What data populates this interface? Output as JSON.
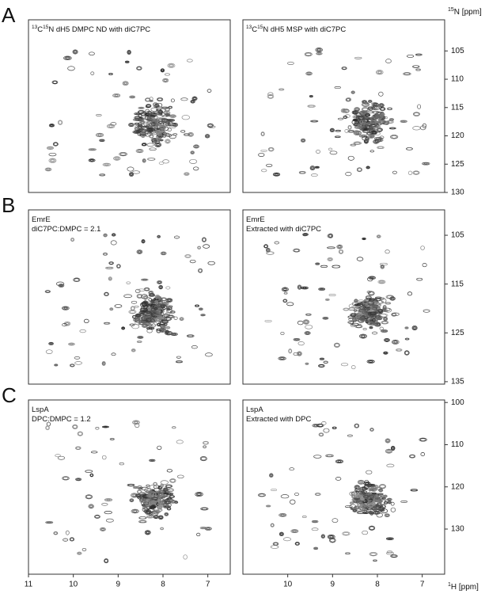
{
  "figure": {
    "y_axis_label": {
      "nucleus": "15",
      "text": "N [ppm]"
    },
    "x_axis_label": {
      "nucleus": "1",
      "text": "H [ppm]"
    },
    "xlim": [
      11,
      6.5
    ],
    "xticks": [
      11,
      10,
      9,
      8,
      7
    ],
    "rows": [
      {
        "letter": "A",
        "ylim": [
          99.5,
          130
        ],
        "yticks": [
          105,
          110,
          115,
          120,
          125,
          130
        ],
        "panels": [
          {
            "title": [
              [
                {
                  "text": "13",
                  "sup": true
                },
                {
                  "text": "C"
                },
                {
                  "text": "15",
                  "sup": true
                },
                {
                  "text": "N dH5 DMPC ND with diC7PC"
                }
              ]
            ]
          },
          {
            "title": [
              [
                {
                  "text": "13",
                  "sup": true
                },
                {
                  "text": "C"
                },
                {
                  "text": "15",
                  "sup": true
                },
                {
                  "text": "N dH5 MSP with diC7PC"
                }
              ]
            ]
          }
        ]
      },
      {
        "letter": "B",
        "ylim": [
          99.8,
          135.5
        ],
        "yticks": [
          105,
          115,
          125,
          135
        ],
        "panels": [
          {
            "title": [
              [
                {
                  "text": "EmrE"
                }
              ],
              [
                {
                  "text": "diC7PC:DMPC = 2.1"
                }
              ]
            ]
          },
          {
            "title": [
              [
                {
                  "text": "EmrE"
                }
              ],
              [
                {
                  "text": "Extracted with diC7PC"
                }
              ]
            ]
          }
        ]
      },
      {
        "letter": "C",
        "ylim": [
          99.4,
          140.7
        ],
        "yticks": [
          100,
          110,
          120,
          130
        ],
        "panels": [
          {
            "title": [
              [
                {
                  "text": "LspA"
                }
              ],
              [
                {
                  "text": "DPC:DMPC = 1.2"
                }
              ]
            ]
          },
          {
            "title": [
              [
                {
                  "text": "LspA"
                }
              ],
              [
                {
                  "text": "Extracted with DPC"
                }
              ]
            ]
          }
        ]
      }
    ]
  }
}
